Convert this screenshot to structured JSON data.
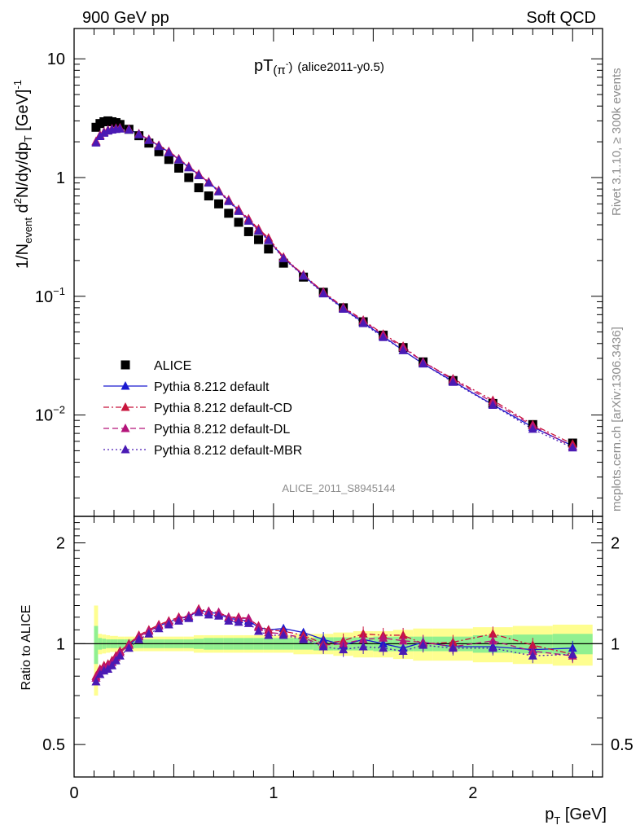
{
  "header": {
    "left": "900 GeV pp",
    "right": "Soft QCD"
  },
  "side_labels": {
    "rivet": "Rivet 3.1.10, ≥ 300k events",
    "mcplots": "mcplots.cern.ch [arXiv:1306.3436]"
  },
  "colors": {
    "data": "#000000",
    "default": "#1a1ad0",
    "cd": "#c8143c",
    "dl": "#b4147a",
    "mbr": "#4a1ab4",
    "band_inner": "#90f090",
    "band_outer": "#fefe90"
  },
  "chart_data": [
    {
      "type": "scatter",
      "panel": "main",
      "title": "pT(π⁻) (alice2011-y0.5)",
      "title_main": "pT",
      "title_particle": "(π",
      "title_sup": "-",
      "title_close": ")",
      "title_tag": "(alice2011-y0.5)",
      "watermark": "ALICE_2011_S8945144",
      "ylabel": "1/N_event d²N/dy/dp_T [GeV]⁻¹",
      "xlim": [
        0,
        2.65
      ],
      "ylim": [
        0.0014,
        18
      ],
      "yscale": "log",
      "yticks": [
        {
          "value": 10,
          "label": "10",
          "exp": ""
        },
        {
          "value": 1,
          "label": "1",
          "exp": ""
        },
        {
          "value": 0.1,
          "label": "10",
          "exp": "−1"
        },
        {
          "value": 0.01,
          "label": "10",
          "exp": "−2"
        }
      ],
      "legend_position": "bottom-left",
      "x": [
        0.11,
        0.13,
        0.15,
        0.17,
        0.19,
        0.21,
        0.23,
        0.275,
        0.325,
        0.375,
        0.425,
        0.475,
        0.525,
        0.575,
        0.625,
        0.675,
        0.725,
        0.775,
        0.825,
        0.875,
        0.925,
        0.975,
        1.05,
        1.15,
        1.25,
        1.35,
        1.45,
        1.55,
        1.65,
        1.75,
        1.9,
        2.1,
        2.3,
        2.5
      ],
      "series": [
        {
          "name": "ALICE",
          "key": "data",
          "values": [
            2.65,
            2.85,
            2.95,
            3.0,
            2.95,
            2.9,
            2.8,
            2.55,
            2.25,
            1.95,
            1.65,
            1.42,
            1.2,
            1.0,
            0.82,
            0.7,
            0.6,
            0.5,
            0.42,
            0.35,
            0.3,
            0.25,
            0.19,
            0.145,
            0.108,
            0.08,
            0.061,
            0.047,
            0.037,
            0.028,
            0.0195,
            0.0125,
            0.0083,
            0.0058
          ]
        },
        {
          "name": "Pythia 8.212 default",
          "key": "default",
          "line": "solid",
          "values": [
            2.0,
            2.25,
            2.4,
            2.5,
            2.55,
            2.58,
            2.6,
            2.55,
            2.32,
            2.08,
            1.85,
            1.64,
            1.42,
            1.22,
            1.06,
            0.91,
            0.77,
            0.64,
            0.53,
            0.44,
            0.36,
            0.3,
            0.211,
            0.15,
            0.107,
            0.079,
            0.06,
            0.046,
            0.035,
            0.027,
            0.0192,
            0.0122,
            0.0079,
            0.0055
          ]
        },
        {
          "name": "Pythia 8.212 default-CD",
          "key": "cd",
          "line": "dashdot",
          "values": [
            2.02,
            2.28,
            2.42,
            2.52,
            2.57,
            2.6,
            2.62,
            2.56,
            2.34,
            2.1,
            1.87,
            1.66,
            1.44,
            1.24,
            1.07,
            0.92,
            0.78,
            0.65,
            0.54,
            0.45,
            0.37,
            0.31,
            0.214,
            0.152,
            0.109,
            0.081,
            0.063,
            0.048,
            0.038,
            0.028,
            0.0202,
            0.0133,
            0.0083,
            0.0057
          ]
        },
        {
          "name": "Pythia 8.212 default-DL",
          "key": "dl",
          "line": "dashed",
          "values": [
            2.0,
            2.26,
            2.41,
            2.51,
            2.56,
            2.59,
            2.61,
            2.55,
            2.33,
            2.09,
            1.86,
            1.65,
            1.43,
            1.23,
            1.06,
            0.91,
            0.77,
            0.64,
            0.53,
            0.44,
            0.36,
            0.3,
            0.21,
            0.151,
            0.108,
            0.08,
            0.062,
            0.047,
            0.037,
            0.028,
            0.0198,
            0.0128,
            0.0081,
            0.0054
          ]
        },
        {
          "name": "Pythia 8.212 default-MBR",
          "key": "mbr",
          "line": "dotted",
          "values": [
            1.96,
            2.22,
            2.37,
            2.47,
            2.52,
            2.55,
            2.57,
            2.52,
            2.3,
            2.06,
            1.83,
            1.62,
            1.41,
            1.21,
            1.04,
            0.9,
            0.76,
            0.63,
            0.52,
            0.43,
            0.355,
            0.295,
            0.208,
            0.148,
            0.105,
            0.078,
            0.059,
            0.045,
            0.035,
            0.027,
            0.0189,
            0.0121,
            0.0076,
            0.0053
          ]
        }
      ]
    },
    {
      "type": "line",
      "panel": "ratio",
      "ylabel": "Ratio to ALICE",
      "xlabel": "p_T [GeV]",
      "xlim": [
        0,
        2.65
      ],
      "ylim": [
        0.4,
        2.4
      ],
      "yscale": "log",
      "xticks": [
        {
          "value": 0,
          "label": "0"
        },
        {
          "value": 1,
          "label": "1"
        },
        {
          "value": 2,
          "label": "2"
        }
      ],
      "yticks": [
        {
          "value": 2,
          "label": "2"
        },
        {
          "value": 1,
          "label": "1"
        },
        {
          "value": 0.5,
          "label": "0.5"
        }
      ],
      "band_x_edges": [
        0.1,
        0.12,
        0.14,
        0.16,
        0.18,
        0.2,
        0.22,
        0.25,
        0.3,
        0.35,
        0.4,
        0.45,
        0.5,
        0.55,
        0.6,
        0.65,
        0.7,
        0.75,
        0.8,
        0.85,
        0.9,
        0.95,
        1.0,
        1.1,
        1.2,
        1.3,
        1.4,
        1.5,
        1.6,
        1.7,
        1.8,
        2.0,
        2.2,
        2.4,
        2.6
      ],
      "band_inner": [
        0.13,
        0.04,
        0.035,
        0.03,
        0.03,
        0.03,
        0.03,
        0.03,
        0.03,
        0.03,
        0.03,
        0.03,
        0.03,
        0.03,
        0.035,
        0.04,
        0.04,
        0.04,
        0.04,
        0.04,
        0.04,
        0.04,
        0.04,
        0.04,
        0.045,
        0.045,
        0.045,
        0.05,
        0.05,
        0.05,
        0.05,
        0.06,
        0.065,
        0.07
      ],
      "band_outer": [
        0.3,
        0.07,
        0.065,
        0.06,
        0.055,
        0.055,
        0.05,
        0.05,
        0.05,
        0.05,
        0.05,
        0.05,
        0.05,
        0.05,
        0.06,
        0.06,
        0.06,
        0.06,
        0.06,
        0.06,
        0.06,
        0.06,
        0.06,
        0.07,
        0.07,
        0.08,
        0.09,
        0.09,
        0.1,
        0.11,
        0.11,
        0.12,
        0.13,
        0.14
      ],
      "x": [
        0.11,
        0.13,
        0.15,
        0.17,
        0.19,
        0.21,
        0.23,
        0.275,
        0.325,
        0.375,
        0.425,
        0.475,
        0.525,
        0.575,
        0.625,
        0.675,
        0.725,
        0.775,
        0.825,
        0.875,
        0.925,
        0.975,
        1.05,
        1.15,
        1.25,
        1.35,
        1.45,
        1.55,
        1.65,
        1.75,
        1.9,
        2.1,
        2.3,
        2.5
      ],
      "series": [
        {
          "name": "Pythia 8.212 default",
          "key": "default",
          "line": "solid",
          "values": [
            0.79,
            0.83,
            0.85,
            0.86,
            0.88,
            0.91,
            0.94,
            0.99,
            1.05,
            1.09,
            1.13,
            1.16,
            1.19,
            1.2,
            1.26,
            1.24,
            1.23,
            1.19,
            1.18,
            1.17,
            1.12,
            1.1,
            1.11,
            1.08,
            1.03,
            0.99,
            1.03,
            1.0,
            0.97,
            1.01,
            0.98,
            0.98,
            0.96,
            0.97
          ]
        },
        {
          "name": "Pythia 8.212 default-CD",
          "key": "cd",
          "line": "dashdot",
          "values": [
            0.8,
            0.84,
            0.86,
            0.87,
            0.89,
            0.92,
            0.95,
            1.0,
            1.06,
            1.1,
            1.14,
            1.17,
            1.2,
            1.21,
            1.27,
            1.25,
            1.24,
            1.2,
            1.2,
            1.19,
            1.13,
            1.1,
            1.09,
            1.06,
            1.0,
            1.02,
            1.07,
            1.06,
            1.06,
            1.0,
            1.01,
            1.07,
            0.99,
            0.93
          ]
        },
        {
          "name": "Pythia 8.212 default-DL",
          "key": "dl",
          "line": "dashed",
          "values": [
            0.79,
            0.83,
            0.85,
            0.86,
            0.88,
            0.91,
            0.94,
            0.99,
            1.05,
            1.09,
            1.13,
            1.16,
            1.19,
            1.21,
            1.26,
            1.25,
            1.24,
            1.2,
            1.19,
            1.19,
            1.12,
            1.08,
            1.07,
            1.04,
            0.99,
            1.0,
            1.03,
            1.04,
            1.02,
            1.01,
            0.98,
            1.02,
            0.95,
            0.92
          ]
        },
        {
          "name": "Pythia 8.212 default-MBR",
          "key": "mbr",
          "line": "dotted",
          "values": [
            0.77,
            0.81,
            0.83,
            0.84,
            0.86,
            0.89,
            0.92,
            0.97,
            1.03,
            1.07,
            1.11,
            1.14,
            1.17,
            1.19,
            1.24,
            1.22,
            1.21,
            1.17,
            1.16,
            1.15,
            1.09,
            1.06,
            1.06,
            1.03,
            0.98,
            0.96,
            0.98,
            0.97,
            0.95,
            0.99,
            0.97,
            0.97,
            0.92,
            0.93
          ]
        }
      ]
    }
  ]
}
